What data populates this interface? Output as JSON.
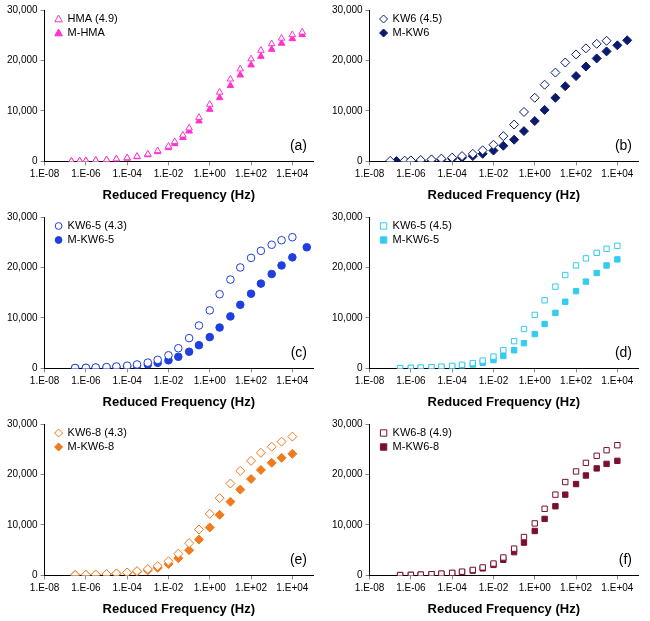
{
  "chart_data": [
    {
      "type": "scatter",
      "x_label": "Reduced Frequency (Hz)",
      "annotation": "(a)",
      "log": "x",
      "grid": false,
      "legend": "top-left",
      "xlim": [
        1e-08,
        100000.0
      ],
      "xticks": [
        {
          "value": 1e-08,
          "label": "1.E-08"
        },
        {
          "value": 1e-06,
          "label": "1.E-06"
        },
        {
          "value": 0.0001,
          "label": "1.E-04"
        },
        {
          "value": 0.01,
          "label": "1.E-02"
        },
        {
          "value": 1,
          "label": "1.E+00"
        },
        {
          "value": 100,
          "label": "1.E+02"
        },
        {
          "value": 10000,
          "label": "1.E+04"
        }
      ],
      "ylim": [
        0,
        30000
      ],
      "yticks": [
        0,
        {
          "value": 10000,
          "label": "10,000"
        },
        {
          "value": 20000,
          "label": "20,000"
        },
        {
          "value": 30000,
          "label": "30,000"
        }
      ],
      "series": [
        {
          "name": "HMA (4.9)",
          "color": "#ff33cc",
          "marker": "open-triangle",
          "x": [
            2e-07,
            5e-07,
            1e-06,
            3e-06,
            1e-05,
            3e-05,
            0.0001,
            0.0003,
            0.001,
            0.003,
            0.01,
            0.02,
            0.05,
            0.1,
            0.3,
            1,
            3,
            10,
            30,
            100,
            300,
            1000,
            3000,
            10000,
            30000
          ],
          "values": [
            60,
            90,
            130,
            200,
            320,
            480,
            700,
            1000,
            1450,
            2100,
            3000,
            3900,
            5200,
            6600,
            8700,
            11300,
            13700,
            16300,
            18300,
            20300,
            22000,
            23300,
            24400,
            25100,
            25600
          ]
        },
        {
          "name": "M-HMA",
          "color": "#ff33cc",
          "marker": "triangle",
          "x": [
            2e-07,
            5e-07,
            1e-06,
            3e-06,
            1e-05,
            3e-05,
            0.0001,
            0.0003,
            0.001,
            0.003,
            0.01,
            0.02,
            0.05,
            0.1,
            0.3,
            1,
            3,
            10,
            30,
            100,
            300,
            1000,
            3000,
            10000,
            30000
          ],
          "values": [
            50,
            80,
            110,
            170,
            270,
            420,
            620,
            900,
            1300,
            1900,
            2700,
            3500,
            4700,
            6000,
            8000,
            10300,
            12600,
            15000,
            17100,
            19100,
            20800,
            22200,
            23400,
            24300,
            25100
          ]
        }
      ]
    },
    {
      "type": "scatter",
      "x_label": "Reduced Frequency (Hz)",
      "annotation": "(b)",
      "log": "x",
      "grid": false,
      "legend": "top-left",
      "xlim": [
        1e-08,
        100000.0
      ],
      "xticks": [
        {
          "value": 1e-08,
          "label": "1.E-08"
        },
        {
          "value": 1e-06,
          "label": "1.E-06"
        },
        {
          "value": 0.0001,
          "label": "1.E-04"
        },
        {
          "value": 0.01,
          "label": "1.E-02"
        },
        {
          "value": 1,
          "label": "1.E+00"
        },
        {
          "value": 100,
          "label": "1.E+02"
        },
        {
          "value": 10000,
          "label": "1.E+04"
        }
      ],
      "ylim": [
        0,
        30000
      ],
      "yticks": [
        0,
        {
          "value": 10000,
          "label": "10,000"
        },
        {
          "value": 20000,
          "label": "20,000"
        },
        {
          "value": 30000,
          "label": "30,000"
        }
      ],
      "series": [
        {
          "name": "KW6 (4.5)",
          "color": "#0a1a6e",
          "marker": "open-diamond",
          "x": [
            1e-07,
            5e-07,
            1e-06,
            3e-06,
            1e-05,
            3e-05,
            0.0001,
            0.0003,
            0.001,
            0.003,
            0.01,
            0.03,
            0.1,
            0.3,
            1,
            3,
            10,
            30,
            100,
            300,
            1000,
            3000
          ],
          "values": [
            100,
            150,
            200,
            280,
            400,
            550,
            750,
            1050,
            1500,
            2200,
            3300,
            5000,
            7300,
            9800,
            12600,
            15200,
            17600,
            19600,
            21200,
            22400,
            23300,
            23900
          ]
        },
        {
          "name": "M-KW6",
          "color": "#0a1a6e",
          "marker": "diamond",
          "x": [
            2e-07,
            1e-06,
            3e-06,
            1e-05,
            3e-05,
            0.0001,
            0.0003,
            0.001,
            0.003,
            0.01,
            0.03,
            0.1,
            0.3,
            1,
            3,
            10,
            30,
            100,
            300,
            1000,
            3000,
            10000,
            30000
          ],
          "values": [
            60,
            120,
            180,
            260,
            370,
            520,
            740,
            1050,
            1500,
            2150,
            3100,
            4300,
            6000,
            8000,
            10200,
            12600,
            14900,
            16900,
            18800,
            20400,
            21800,
            23000,
            24000
          ]
        }
      ]
    },
    {
      "type": "scatter",
      "x_label": "Reduced Frequency (Hz)",
      "annotation": "(c)",
      "log": "x",
      "grid": false,
      "legend": "top-left",
      "xlim": [
        1e-08,
        100000.0
      ],
      "xticks": [
        {
          "value": 1e-08,
          "label": "1.E-08"
        },
        {
          "value": 1e-06,
          "label": "1.E-06"
        },
        {
          "value": 0.0001,
          "label": "1.E-04"
        },
        {
          "value": 0.01,
          "label": "1.E-02"
        },
        {
          "value": 1,
          "label": "1.E+00"
        },
        {
          "value": 100,
          "label": "1.E+02"
        },
        {
          "value": 10000,
          "label": "1.E+04"
        }
      ],
      "ylim": [
        0,
        30000
      ],
      "yticks": [
        0,
        {
          "value": 10000,
          "label": "10,000"
        },
        {
          "value": 20000,
          "label": "20,000"
        },
        {
          "value": 30000,
          "label": "30,000"
        }
      ],
      "series": [
        {
          "name": "KW6-5 (4.3)",
          "color": "#1f3fe0",
          "marker": "open-circle",
          "x": [
            3e-07,
            1e-06,
            3e-06,
            1e-05,
            3e-05,
            0.0001,
            0.0003,
            0.001,
            0.003,
            0.01,
            0.03,
            0.1,
            0.3,
            1,
            3,
            10,
            30,
            100,
            300,
            1000,
            3000,
            10000
          ],
          "values": [
            80,
            120,
            180,
            260,
            380,
            540,
            780,
            1150,
            1700,
            2600,
            4000,
            6000,
            8500,
            11500,
            14700,
            17600,
            20000,
            21900,
            23300,
            24500,
            25400,
            26000
          ]
        },
        {
          "name": "M-KW6-5",
          "color": "#1f3fe0",
          "marker": "circle",
          "x": [
            3e-07,
            1e-06,
            3e-06,
            1e-05,
            3e-05,
            0.0001,
            0.0003,
            0.001,
            0.003,
            0.01,
            0.03,
            0.1,
            0.3,
            1,
            3,
            10,
            30,
            100,
            300,
            1000,
            3000,
            10000,
            50000
          ],
          "values": [
            60,
            90,
            130,
            190,
            270,
            380,
            540,
            780,
            1100,
            1600,
            2300,
            3300,
            4600,
            6200,
            8100,
            10300,
            12600,
            14800,
            16800,
            18700,
            20400,
            22000,
            24000
          ]
        }
      ]
    },
    {
      "type": "scatter",
      "x_label": "Reduced Frequency (Hz)",
      "annotation": "(d)",
      "log": "x",
      "grid": false,
      "legend": "top-left",
      "xlim": [
        1e-08,
        100000.0
      ],
      "xticks": [
        {
          "value": 1e-08,
          "label": "1.E-08"
        },
        {
          "value": 1e-06,
          "label": "1.E-06"
        },
        {
          "value": 0.0001,
          "label": "1.E-04"
        },
        {
          "value": 0.01,
          "label": "1.E-02"
        },
        {
          "value": 1,
          "label": "1.E+00"
        },
        {
          "value": 100,
          "label": "1.E+02"
        },
        {
          "value": 10000,
          "label": "1.E+04"
        }
      ],
      "ylim": [
        0,
        30000
      ],
      "yticks": [
        0,
        {
          "value": 10000,
          "label": "10,000"
        },
        {
          "value": 20000,
          "label": "20,000"
        },
        {
          "value": 30000,
          "label": "30,000"
        }
      ],
      "series": [
        {
          "name": "KW6-5 (4.5)",
          "color": "#33ccee",
          "marker": "open-square",
          "x": [
            3e-07,
            1e-06,
            3e-06,
            1e-05,
            3e-05,
            0.0001,
            0.0003,
            0.001,
            0.003,
            0.01,
            0.03,
            0.1,
            0.3,
            1,
            3,
            10,
            30,
            100,
            300,
            1000,
            3000,
            10000
          ],
          "values": [
            70,
            110,
            160,
            240,
            350,
            500,
            720,
            1050,
            1550,
            2350,
            3600,
            5400,
            7800,
            10600,
            13500,
            16200,
            18500,
            20400,
            21800,
            22900,
            23700,
            24300
          ]
        },
        {
          "name": "M-KW6-5",
          "color": "#33ccee",
          "marker": "square",
          "x": [
            3e-07,
            1e-06,
            3e-06,
            1e-05,
            3e-05,
            0.0001,
            0.0003,
            0.001,
            0.003,
            0.01,
            0.03,
            0.1,
            0.3,
            1,
            3,
            10,
            30,
            100,
            300,
            1000,
            3000,
            10000
          ],
          "values": [
            50,
            80,
            120,
            180,
            260,
            370,
            530,
            770,
            1120,
            1650,
            2450,
            3600,
            5000,
            6800,
            8800,
            11000,
            13200,
            15300,
            17200,
            18900,
            20400,
            21600
          ]
        }
      ]
    },
    {
      "type": "scatter",
      "x_label": "Reduced Frequency (Hz)",
      "annotation": "(e)",
      "log": "x",
      "grid": false,
      "legend": "top-left",
      "xlim": [
        1e-08,
        100000.0
      ],
      "xticks": [
        {
          "value": 1e-08,
          "label": "1.E-08"
        },
        {
          "value": 1e-06,
          "label": "1.E-06"
        },
        {
          "value": 0.0001,
          "label": "1.E-04"
        },
        {
          "value": 0.01,
          "label": "1.E-02"
        },
        {
          "value": 1,
          "label": "1.E+00"
        },
        {
          "value": 100,
          "label": "1.E+02"
        },
        {
          "value": 10000,
          "label": "1.E+04"
        }
      ],
      "ylim": [
        0,
        30000
      ],
      "yticks": [
        0,
        {
          "value": 10000,
          "label": "10,000"
        },
        {
          "value": 20000,
          "label": "20,000"
        },
        {
          "value": 30000,
          "label": "30,000"
        }
      ],
      "series": [
        {
          "name": "KW6-8 (4.3)",
          "color": "#f07a1e",
          "marker": "open-diamond",
          "x": [
            3e-07,
            1e-06,
            3e-06,
            1e-05,
            3e-05,
            0.0001,
            0.0003,
            0.001,
            0.003,
            0.01,
            0.03,
            0.1,
            0.3,
            1,
            3,
            10,
            30,
            100,
            300,
            1000,
            3000,
            10000
          ],
          "values": [
            80,
            120,
            180,
            270,
            400,
            580,
            850,
            1250,
            1850,
            2800,
            4300,
            6400,
            9100,
            12200,
            15300,
            18200,
            20700,
            22700,
            24300,
            25500,
            26500,
            27500
          ]
        },
        {
          "name": "M-KW6-8",
          "color": "#f07a1e",
          "marker": "diamond",
          "x": [
            3e-07,
            1e-06,
            3e-06,
            1e-05,
            3e-05,
            0.0001,
            0.0003,
            0.001,
            0.003,
            0.01,
            0.03,
            0.1,
            0.3,
            1,
            3,
            10,
            30,
            100,
            300,
            1000,
            3000,
            10000
          ],
          "values": [
            60,
            100,
            150,
            220,
            330,
            480,
            700,
            1030,
            1500,
            2250,
            3400,
            5000,
            7100,
            9500,
            12000,
            14600,
            17000,
            19100,
            20900,
            22300,
            23300,
            24100
          ]
        }
      ]
    },
    {
      "type": "scatter",
      "x_label": "Reduced Frequency (Hz)",
      "annotation": "(f)",
      "log": "x",
      "grid": false,
      "legend": "top-left",
      "xlim": [
        1e-08,
        100000.0
      ],
      "xticks": [
        {
          "value": 1e-08,
          "label": "1.E-08"
        },
        {
          "value": 1e-06,
          "label": "1.E-06"
        },
        {
          "value": 0.0001,
          "label": "1.E-04"
        },
        {
          "value": 0.01,
          "label": "1.E-02"
        },
        {
          "value": 1,
          "label": "1.E+00"
        },
        {
          "value": 100,
          "label": "1.E+02"
        },
        {
          "value": 10000,
          "label": "1.E+04"
        }
      ],
      "ylim": [
        0,
        30000
      ],
      "yticks": [
        0,
        {
          "value": 10000,
          "label": "10,000"
        },
        {
          "value": 20000,
          "label": "20,000"
        },
        {
          "value": 30000,
          "label": "30,000"
        }
      ],
      "series": [
        {
          "name": "KW6-8 (4.9)",
          "color": "#7a1030",
          "marker": "open-square",
          "x": [
            3e-07,
            1e-06,
            3e-06,
            1e-05,
            3e-05,
            0.0001,
            0.0003,
            0.001,
            0.003,
            0.01,
            0.03,
            0.1,
            0.3,
            1,
            3,
            10,
            30,
            100,
            300,
            1000,
            3000,
            10000
          ],
          "values": [
            70,
            110,
            160,
            240,
            350,
            510,
            740,
            1080,
            1580,
            2350,
            3550,
            5300,
            7600,
            10300,
            13200,
            16000,
            18500,
            20600,
            22300,
            23700,
            24800,
            25800
          ]
        },
        {
          "name": "M-KW6-8",
          "color": "#7a1030",
          "marker": "square",
          "x": [
            3e-07,
            1e-06,
            3e-06,
            1e-05,
            3e-05,
            0.0001,
            0.0003,
            0.001,
            0.003,
            0.01,
            0.03,
            0.1,
            0.3,
            1,
            3,
            10,
            30,
            100,
            300,
            1000,
            3000,
            10000
          ],
          "values": [
            60,
            90,
            140,
            210,
            310,
            450,
            650,
            950,
            1400,
            2080,
            3100,
            4600,
            6500,
            8800,
            11200,
            13700,
            16000,
            18100,
            19800,
            21200,
            22100,
            22700
          ]
        }
      ]
    }
  ]
}
